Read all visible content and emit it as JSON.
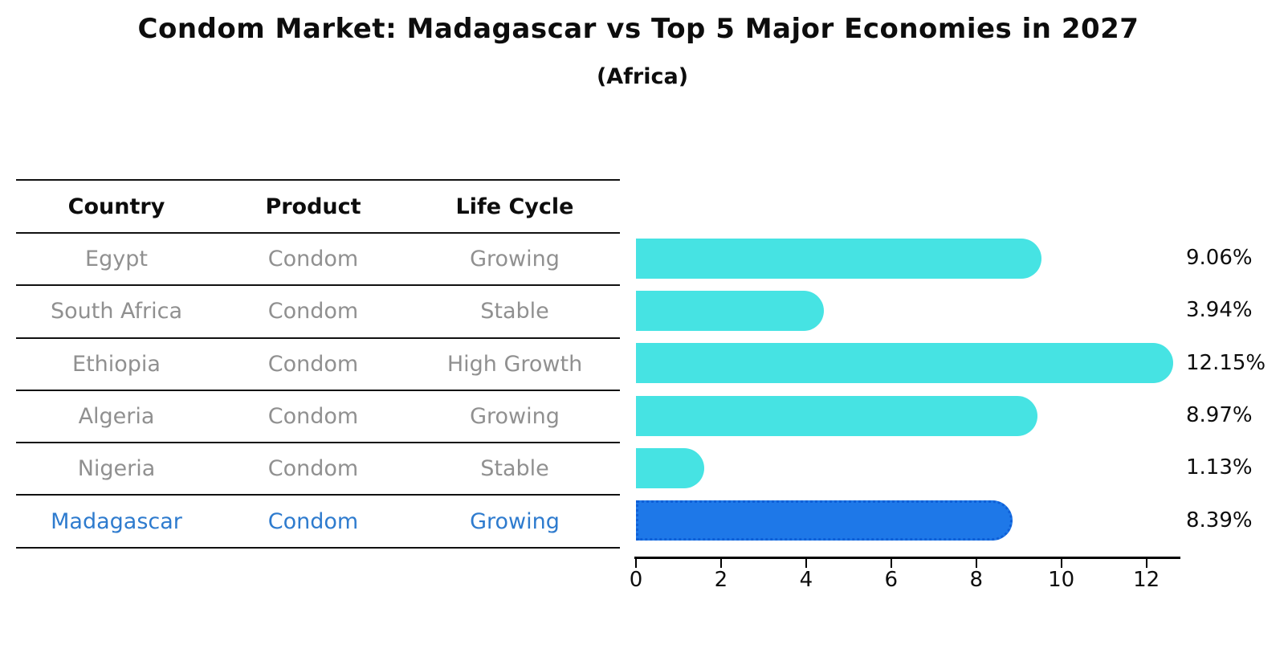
{
  "header": {
    "title": "Condom Market: Madagascar vs Top 5 Major Economies in 2027",
    "subtitle": "(Africa)"
  },
  "table": {
    "columns": [
      "Country",
      "Product",
      "Life Cycle"
    ],
    "rows": [
      {
        "country": "Egypt",
        "product": "Condom",
        "life_cycle": "Growing",
        "highlight": false
      },
      {
        "country": "South Africa",
        "product": "Condom",
        "life_cycle": "Stable",
        "highlight": false
      },
      {
        "country": "Ethiopia",
        "product": "Condom",
        "life_cycle": "High Growth",
        "highlight": false
      },
      {
        "country": "Algeria",
        "product": "Condom",
        "life_cycle": "Growing",
        "highlight": false
      },
      {
        "country": "Nigeria",
        "product": "Condom",
        "life_cycle": "Stable",
        "highlight": false
      },
      {
        "country": "Madagascar",
        "product": "Condom",
        "life_cycle": "Growing",
        "highlight": true
      }
    ]
  },
  "chart_data": {
    "type": "bar",
    "orientation": "horizontal",
    "title": "Condom Market: Madagascar vs Top 5 Major Economies in 2027",
    "subtitle": "(Africa)",
    "categories": [
      "Egypt",
      "South Africa",
      "Ethiopia",
      "Algeria",
      "Nigeria",
      "Madagascar"
    ],
    "values": [
      9.06,
      3.94,
      12.15,
      8.97,
      1.13,
      8.39
    ],
    "value_labels": [
      "9.06%",
      "3.94%",
      "12.15%",
      "8.97%",
      "1.13%",
      "8.39%"
    ],
    "x_ticks": [
      0,
      2,
      4,
      6,
      8,
      10,
      12
    ],
    "xlim": [
      0,
      12.8
    ],
    "grid": false,
    "legend": false,
    "highlight_index": 5,
    "bar_color": "#46E3E3",
    "highlight_bar_color": "#1E78E8",
    "highlight_border_color": "#0F5FD7",
    "axis_color": "#000000",
    "label_color": "#0d0d0d",
    "row_text_color": "#909090",
    "highlight_text_color": "#2E7BCE"
  }
}
